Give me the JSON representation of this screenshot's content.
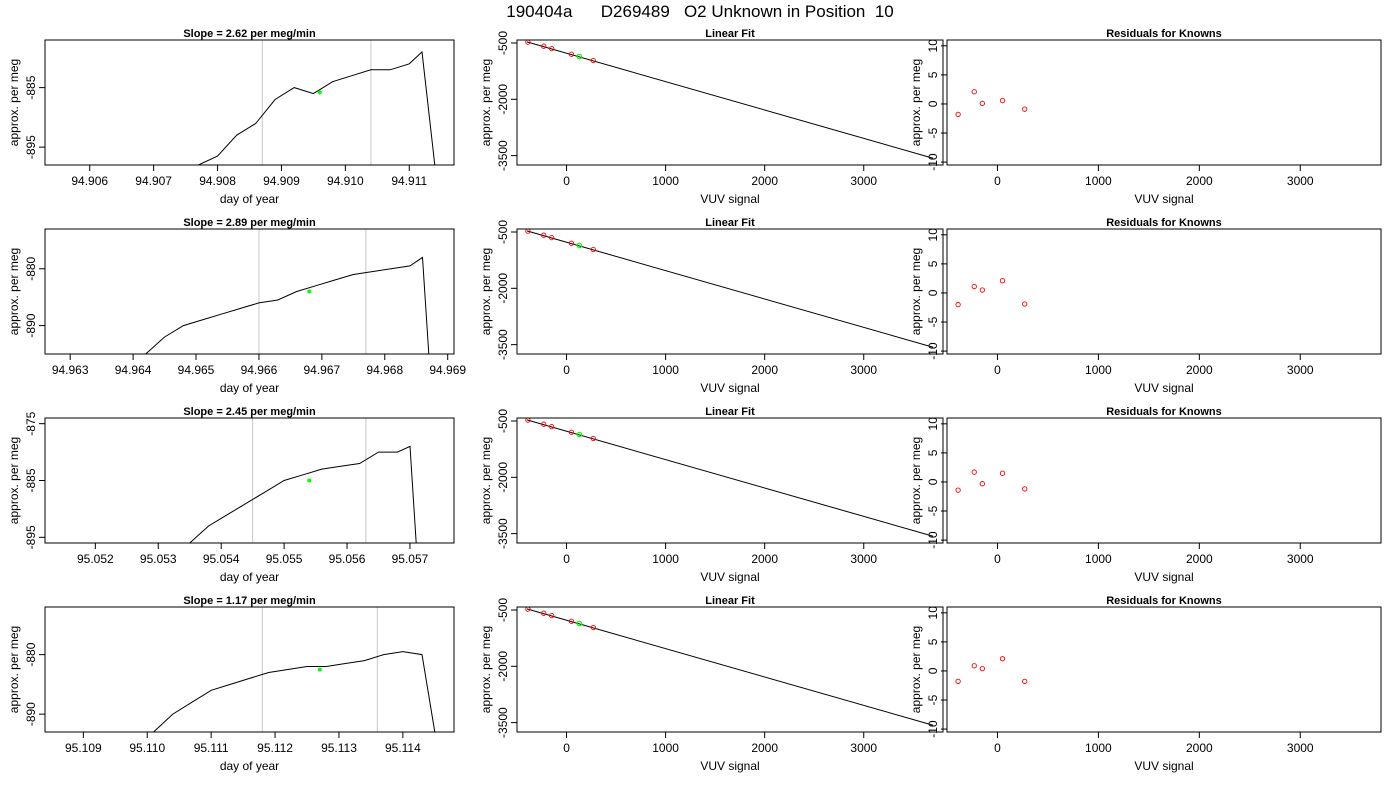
{
  "title": "190404a      D269489   O2 Unknown in Position  10",
  "colors": {
    "fit_line": "#000000",
    "known_points": "#ff0000",
    "unknown_point": "#00ff00",
    "time_series": "#000000",
    "window_lines": "#c8c8c8"
  },
  "chart_data": [
    {
      "type": "line",
      "title": "Slope =  2.62  per meg/min",
      "xlabel": "day of year",
      "ylabel": "approx. per meg",
      "xlim": [
        94.9053,
        94.9117
      ],
      "ylim": [
        -898,
        -877
      ],
      "xticks": [
        "94.906",
        "94.907",
        "94.908",
        "94.909",
        "94.910",
        "94.911"
      ],
      "yticks": [
        "-885",
        "-895"
      ],
      "window_lines_x": [
        94.9087,
        94.9104
      ],
      "unknown_point": {
        "x": 94.9096,
        "y": -885.8
      },
      "series": [
        {
          "x": [
            94.9077,
            94.908,
            94.9083,
            94.9086,
            94.9089,
            94.9092,
            94.9095,
            94.9098,
            94.9101,
            94.9104,
            94.9107,
            94.911,
            94.9112,
            94.9114
          ],
          "y": [
            -898,
            -896.5,
            -893,
            -891,
            -887,
            -885,
            -886,
            -884,
            -883,
            -882,
            -882,
            -881,
            -879,
            -898
          ]
        }
      ]
    },
    {
      "type": "scatter",
      "title": "Linear Fit",
      "xlabel": "VUV signal",
      "ylabel": "approx. per meg",
      "xlim": [
        -500,
        3800
      ],
      "ylim": [
        -3750,
        -420
      ],
      "xticks": [
        "0",
        "1000",
        "2000",
        "3000"
      ],
      "yticks": [
        "-500",
        "-2000",
        "-3500"
      ],
      "fit_line": {
        "x": [
          -400,
          3700
        ],
        "y": [
          -470,
          -3570
        ]
      },
      "knowns": {
        "x": [
          -390,
          -230,
          -150,
          50,
          270
        ],
        "y": [
          -476,
          -585,
          -650,
          -800,
          -967
        ]
      },
      "unknown": {
        "x": 130,
        "y": -860
      }
    },
    {
      "type": "scatter",
      "title": "Residuals for Knowns",
      "xlabel": "VUV signal",
      "ylabel": "approx. per meg",
      "xlim": [
        -500,
        3800
      ],
      "ylim": [
        -10.5,
        11
      ],
      "xticks": [
        "0",
        "1000",
        "2000",
        "3000"
      ],
      "yticks": [
        "-10",
        "-5",
        "0",
        "5",
        "10"
      ],
      "knowns": {
        "x": [
          -390,
          -230,
          -150,
          50,
          270
        ],
        "y": [
          -1.8,
          2.1,
          0.1,
          0.6,
          -0.9
        ]
      }
    },
    {
      "type": "line",
      "title": "Slope =  2.89  per meg/min",
      "xlabel": "day of year",
      "ylabel": "approx. per meg",
      "xlim": [
        94.9626,
        94.9691
      ],
      "ylim": [
        -895,
        -873
      ],
      "xticks": [
        "94.963",
        "94.964",
        "94.965",
        "94.966",
        "94.967",
        "94.968",
        "94.969"
      ],
      "yticks": [
        "-880",
        "-890"
      ],
      "window_lines_x": [
        94.966,
        94.9677
      ],
      "unknown_point": {
        "x": 94.9668,
        "y": -884
      },
      "series": [
        {
          "x": [
            94.9642,
            94.9645,
            94.9648,
            94.9651,
            94.9654,
            94.9657,
            94.966,
            94.9663,
            94.9666,
            94.9669,
            94.9672,
            94.9675,
            94.9678,
            94.9681,
            94.9684,
            94.9686,
            94.9687
          ],
          "y": [
            -895,
            -892,
            -890,
            -889,
            -888,
            -887,
            -886,
            -885.5,
            -884,
            -883,
            -882,
            -881,
            -880.5,
            -880,
            -879.5,
            -878,
            -895
          ]
        }
      ]
    },
    {
      "type": "scatter",
      "title": "Linear Fit",
      "xlabel": "VUV signal",
      "ylabel": "approx. per meg",
      "xlim": [
        -500,
        3800
      ],
      "ylim": [
        -3750,
        -420
      ],
      "xticks": [
        "0",
        "1000",
        "2000",
        "3000"
      ],
      "yticks": [
        "-500",
        "-2000",
        "-3500"
      ],
      "fit_line": {
        "x": [
          -400,
          3700
        ],
        "y": [
          -470,
          -3570
        ]
      },
      "knowns": {
        "x": [
          -390,
          -230,
          -150,
          50,
          270
        ],
        "y": [
          -476,
          -585,
          -650,
          -800,
          -967
        ]
      },
      "unknown": {
        "x": 130,
        "y": -860
      }
    },
    {
      "type": "scatter",
      "title": "Residuals for Knowns",
      "xlabel": "VUV signal",
      "ylabel": "approx. per meg",
      "xlim": [
        -500,
        3800
      ],
      "ylim": [
        -10.5,
        11
      ],
      "xticks": [
        "0",
        "1000",
        "2000",
        "3000"
      ],
      "yticks": [
        "-10",
        "-5",
        "0",
        "5",
        "10"
      ],
      "knowns": {
        "x": [
          -390,
          -230,
          -150,
          50,
          270
        ],
        "y": [
          -2.0,
          1.1,
          0.5,
          2.1,
          -1.9
        ]
      }
    },
    {
      "type": "line",
      "title": "Slope =  2.45  per meg/min",
      "xlabel": "day of year",
      "ylabel": "approx. per meg",
      "xlim": [
        95.0512,
        95.0577
      ],
      "ylim": [
        -896,
        -874
      ],
      "xticks": [
        "95.052",
        "95.053",
        "95.054",
        "95.055",
        "95.056",
        "95.057"
      ],
      "yticks": [
        "-875",
        "-885",
        "-895"
      ],
      "window_lines_x": [
        95.0545,
        95.0563
      ],
      "unknown_point": {
        "x": 95.0554,
        "y": -885
      },
      "series": [
        {
          "x": [
            95.0535,
            95.0538,
            95.0541,
            95.0544,
            95.0547,
            95.055,
            95.0553,
            95.0556,
            95.0559,
            95.0562,
            95.0565,
            95.0568,
            95.057,
            95.0571
          ],
          "y": [
            -896,
            -893,
            -891,
            -889,
            -887,
            -885,
            -884,
            -883,
            -882.5,
            -882,
            -880,
            -880,
            -879,
            -896
          ]
        }
      ]
    },
    {
      "type": "scatter",
      "title": "Linear Fit",
      "xlabel": "VUV signal",
      "ylabel": "approx. per meg",
      "xlim": [
        -500,
        3800
      ],
      "ylim": [
        -3750,
        -420
      ],
      "xticks": [
        "0",
        "1000",
        "2000",
        "3000"
      ],
      "yticks": [
        "-500",
        "-2000",
        "-3500"
      ],
      "fit_line": {
        "x": [
          -400,
          3700
        ],
        "y": [
          -470,
          -3570
        ]
      },
      "knowns": {
        "x": [
          -390,
          -230,
          -150,
          50,
          270
        ],
        "y": [
          -476,
          -585,
          -650,
          -800,
          -967
        ]
      },
      "unknown": {
        "x": 130,
        "y": -860
      }
    },
    {
      "type": "scatter",
      "title": "Residuals for Knowns",
      "xlabel": "VUV signal",
      "ylabel": "approx. per meg",
      "xlim": [
        -500,
        3800
      ],
      "ylim": [
        -10.5,
        11
      ],
      "xticks": [
        "0",
        "1000",
        "2000",
        "3000"
      ],
      "yticks": [
        "-10",
        "-5",
        "0",
        "5",
        "10"
      ],
      "knowns": {
        "x": [
          -390,
          -230,
          -150,
          50,
          270
        ],
        "y": [
          -1.4,
          1.7,
          -0.3,
          1.5,
          -1.2
        ]
      }
    },
    {
      "type": "line",
      "title": "Slope =  1.17  per meg/min",
      "xlabel": "day of year",
      "ylabel": "approx. per meg",
      "xlim": [
        95.1084,
        95.1148
      ],
      "ylim": [
        -893,
        -872
      ],
      "xticks": [
        "95.109",
        "95.110",
        "95.111",
        "95.112",
        "95.113",
        "95.114"
      ],
      "yticks": [
        "-880",
        "-890"
      ],
      "window_lines_x": [
        95.1118,
        95.1136
      ],
      "unknown_point": {
        "x": 95.1127,
        "y": -882.5
      },
      "series": [
        {
          "x": [
            95.1101,
            95.1104,
            95.1107,
            95.111,
            95.1113,
            95.1116,
            95.1119,
            95.1122,
            95.1125,
            95.1128,
            95.1131,
            95.1134,
            95.1137,
            95.114,
            95.1143,
            95.1145
          ],
          "y": [
            -893,
            -890,
            -888,
            -886,
            -885,
            -884,
            -883,
            -882.5,
            -882,
            -882,
            -881.5,
            -881,
            -880,
            -879.5,
            -880,
            -893
          ]
        }
      ]
    },
    {
      "type": "scatter",
      "title": "Linear Fit",
      "xlabel": "VUV signal",
      "ylabel": "approx. per meg",
      "xlim": [
        -500,
        3800
      ],
      "ylim": [
        -3750,
        -420
      ],
      "xticks": [
        "0",
        "1000",
        "2000",
        "3000"
      ],
      "yticks": [
        "-500",
        "-2000",
        "-3500"
      ],
      "fit_line": {
        "x": [
          -400,
          3700
        ],
        "y": [
          -470,
          -3570
        ]
      },
      "knowns": {
        "x": [
          -390,
          -230,
          -150,
          50,
          270
        ],
        "y": [
          -476,
          -585,
          -650,
          -800,
          -967
        ]
      },
      "unknown": {
        "x": 130,
        "y": -860
      }
    },
    {
      "type": "scatter",
      "title": "Residuals for Knowns",
      "xlabel": "VUV signal",
      "ylabel": "approx. per meg",
      "xlim": [
        -500,
        3800
      ],
      "ylim": [
        -10.5,
        11
      ],
      "xticks": [
        "0",
        "1000",
        "2000",
        "3000"
      ],
      "yticks": [
        "-10",
        "-5",
        "0",
        "5",
        "10"
      ],
      "knowns": {
        "x": [
          -390,
          -230,
          -150,
          50,
          270
        ],
        "y": [
          -1.8,
          0.9,
          0.4,
          2.1,
          -1.8
        ]
      }
    }
  ]
}
